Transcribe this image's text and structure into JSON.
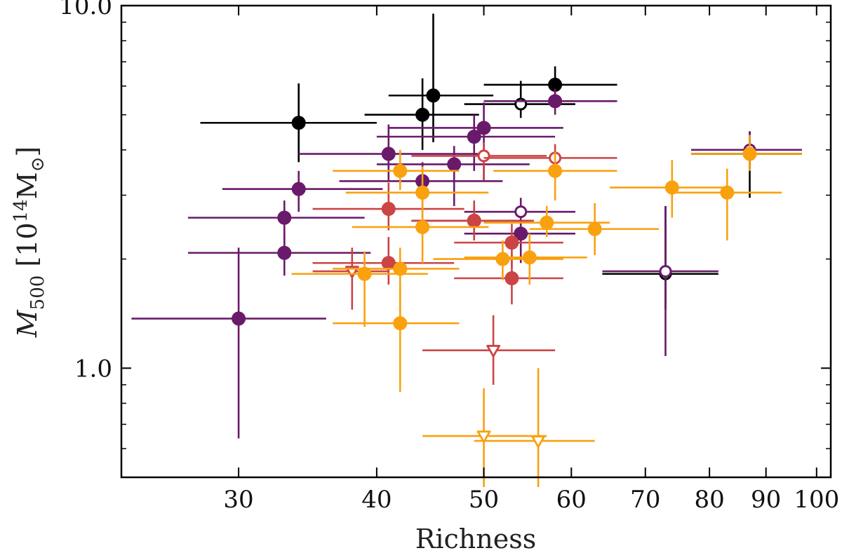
{
  "chart_data": {
    "type": "scatter",
    "title": "",
    "xlabel": "Richness",
    "ylabel_parts": {
      "symbol": "M",
      "subscript": "500",
      "unit_open": " [10",
      "unit_exp": "14",
      "unit_mass": "M",
      "unit_sub": "⊙",
      "unit_close": "]"
    },
    "xscale": "log",
    "yscale": "log",
    "xlim": [
      23.5,
      103
    ],
    "ylim": [
      0.5,
      10.0
    ],
    "x_tick_labels": [
      "30",
      "40",
      "50",
      "60",
      "70",
      "80",
      "90",
      "100"
    ],
    "x_ticks": [
      30,
      40,
      50,
      60,
      70,
      80,
      90,
      100
    ],
    "y_tick_labels": [
      "1.0",
      "10.0"
    ],
    "y_ticks": [
      1.0,
      10.0
    ],
    "grid": false,
    "series_colors": {
      "black": "#000000",
      "purple": "#6a1a6b",
      "red": "#cc4444",
      "orange": "#f9a10f"
    },
    "points": [
      {
        "series": "black",
        "x": 34,
        "y": 4.75,
        "xlo": 27.7,
        "xhi": 40,
        "ylo": 3.7,
        "yhi": 6.1,
        "marker": "filled"
      },
      {
        "series": "black",
        "x": 44,
        "y": 5.0,
        "xlo": 39,
        "xhi": 49.5,
        "ylo": 4.0,
        "yhi": 6.3,
        "marker": "filled"
      },
      {
        "series": "black",
        "x": 45,
        "y": 5.65,
        "xlo": 41,
        "xhi": 51,
        "ylo": 4.2,
        "yhi": 9.5,
        "marker": "filled"
      },
      {
        "series": "black",
        "x": 58,
        "y": 6.05,
        "xlo": 50,
        "xhi": 66,
        "ylo": 5.3,
        "yhi": 6.8,
        "marker": "filled"
      },
      {
        "series": "black",
        "x": 54,
        "y": 5.35,
        "xlo": 48,
        "xhi": 60.5,
        "ylo": 4.9,
        "yhi": 6.2,
        "marker": "open"
      },
      {
        "series": "black",
        "x": 73,
        "y": 1.82,
        "xlo": 64,
        "xhi": 81.5,
        "ylo": 1.45,
        "yhi": 2.8,
        "marker": "open"
      },
      {
        "series": "black",
        "x": 87,
        "y": 3.9,
        "xlo": 77,
        "xhi": 97,
        "ylo": 2.95,
        "yhi": 4.5,
        "marker": "open"
      },
      {
        "series": "purple",
        "x": 30,
        "y": 1.37,
        "xlo": 24,
        "xhi": 36,
        "ylo": 0.64,
        "yhi": 2.15,
        "marker": "filled"
      },
      {
        "series": "purple",
        "x": 33,
        "y": 2.6,
        "xlo": 27,
        "xhi": 39,
        "ylo": 2.2,
        "yhi": 2.9,
        "marker": "filled"
      },
      {
        "series": "purple",
        "x": 33,
        "y": 2.08,
        "xlo": 27,
        "xhi": 39.5,
        "ylo": 1.8,
        "yhi": 2.35,
        "marker": "filled"
      },
      {
        "series": "purple",
        "x": 34,
        "y": 3.12,
        "xlo": 29,
        "xhi": 40.5,
        "ylo": 2.7,
        "yhi": 3.5,
        "marker": "filled"
      },
      {
        "series": "purple",
        "x": 41,
        "y": 3.9,
        "xlo": 34,
        "xhi": 50,
        "ylo": 3.3,
        "yhi": 4.7,
        "marker": "filled"
      },
      {
        "series": "purple",
        "x": 44,
        "y": 3.28,
        "xlo": 37,
        "xhi": 52,
        "ylo": 2.9,
        "yhi": 3.7,
        "marker": "filled"
      },
      {
        "series": "purple",
        "x": 47,
        "y": 3.65,
        "xlo": 40,
        "xhi": 55,
        "ylo": 2.8,
        "yhi": 4.1,
        "marker": "filled"
      },
      {
        "series": "purple",
        "x": 49,
        "y": 4.35,
        "xlo": 40,
        "xhi": 58,
        "ylo": 3.5,
        "yhi": 5.0,
        "marker": "filled"
      },
      {
        "series": "purple",
        "x": 50,
        "y": 4.6,
        "xlo": 41,
        "xhi": 59,
        "ylo": 3.3,
        "yhi": 5.4,
        "marker": "filled"
      },
      {
        "series": "purple",
        "x": 49,
        "y": 2.55,
        "xlo": 43,
        "xhi": 55,
        "ylo": 2.3,
        "yhi": 2.8,
        "marker": "filled"
      },
      {
        "series": "purple",
        "x": 54,
        "y": 2.35,
        "xlo": 48,
        "xhi": 60.5,
        "ylo": 1.95,
        "yhi": 2.6,
        "marker": "filled"
      },
      {
        "series": "purple",
        "x": 58,
        "y": 5.45,
        "xlo": 50,
        "xhi": 66,
        "ylo": 5.0,
        "yhi": 5.9,
        "marker": "filled"
      },
      {
        "series": "purple",
        "x": 54,
        "y": 2.7,
        "xlo": 48,
        "xhi": 60.5,
        "ylo": 2.4,
        "yhi": 2.95,
        "marker": "open"
      },
      {
        "series": "purple",
        "x": 73,
        "y": 1.85,
        "xlo": 64,
        "xhi": 81.5,
        "ylo": 1.08,
        "yhi": 2.8,
        "marker": "open"
      },
      {
        "series": "purple",
        "x": 87,
        "y": 4.0,
        "xlo": 77,
        "xhi": 97,
        "ylo": 3.6,
        "yhi": 4.5,
        "marker": "open"
      },
      {
        "series": "red",
        "x": 38,
        "y": 1.85,
        "xlo": 35,
        "xhi": 41,
        "ylo": 1.45,
        "yhi": 2.15,
        "marker": "triangle"
      },
      {
        "series": "red",
        "x": 41,
        "y": 2.75,
        "xlo": 35,
        "xhi": 48,
        "ylo": 2.4,
        "yhi": 3.25,
        "marker": "filled"
      },
      {
        "series": "red",
        "x": 41,
        "y": 1.95,
        "xlo": 35,
        "xhi": 47,
        "ylo": 1.7,
        "yhi": 2.3,
        "marker": "filled"
      },
      {
        "series": "red",
        "x": 50,
        "y": 3.85,
        "xlo": 43,
        "xhi": 57,
        "ylo": 3.3,
        "yhi": 4.2,
        "marker": "open"
      },
      {
        "series": "red",
        "x": 49,
        "y": 2.55,
        "xlo": 43,
        "xhi": 55.5,
        "ylo": 2.25,
        "yhi": 2.9,
        "marker": "filled"
      },
      {
        "series": "red",
        "x": 53,
        "y": 2.22,
        "xlo": 47,
        "xhi": 59,
        "ylo": 1.9,
        "yhi": 2.5,
        "marker": "filled"
      },
      {
        "series": "red",
        "x": 53,
        "y": 1.77,
        "xlo": 47,
        "xhi": 59,
        "ylo": 1.5,
        "yhi": 2.05,
        "marker": "filled"
      },
      {
        "series": "red",
        "x": 58,
        "y": 3.8,
        "xlo": 50,
        "xhi": 66,
        "ylo": 3.45,
        "yhi": 4.15,
        "marker": "open"
      },
      {
        "series": "red",
        "x": 51,
        "y": 1.12,
        "xlo": 44,
        "xhi": 58,
        "ylo": 0.9,
        "yhi": 1.4,
        "marker": "triangle"
      },
      {
        "series": "orange",
        "x": 39,
        "y": 1.82,
        "xlo": 33.5,
        "xhi": 44.5,
        "ylo": 1.3,
        "yhi": 2.1,
        "marker": "filled"
      },
      {
        "series": "orange",
        "x": 42,
        "y": 1.88,
        "xlo": 36.5,
        "xhi": 47.5,
        "ylo": 1.3,
        "yhi": 2.15,
        "marker": "filled"
      },
      {
        "series": "orange",
        "x": 42,
        "y": 3.5,
        "xlo": 36.5,
        "xhi": 47.5,
        "ylo": 3.1,
        "yhi": 4.0,
        "marker": "filled"
      },
      {
        "series": "orange",
        "x": 42,
        "y": 1.33,
        "xlo": 36.5,
        "xhi": 47.5,
        "ylo": 0.86,
        "yhi": 1.7,
        "marker": "filled"
      },
      {
        "series": "orange",
        "x": 44,
        "y": 3.05,
        "xlo": 37.5,
        "xhi": 50.5,
        "ylo": 2.6,
        "yhi": 3.6,
        "marker": "filled"
      },
      {
        "series": "orange",
        "x": 44,
        "y": 2.45,
        "xlo": 38,
        "xhi": 50.5,
        "ylo": 1.95,
        "yhi": 2.95,
        "marker": "filled"
      },
      {
        "series": "orange",
        "x": 52,
        "y": 2.0,
        "xlo": 45,
        "xhi": 59,
        "ylo": 1.75,
        "yhi": 2.25,
        "marker": "filled"
      },
      {
        "series": "orange",
        "x": 55,
        "y": 2.02,
        "xlo": 48,
        "xhi": 62,
        "ylo": 1.7,
        "yhi": 2.35,
        "marker": "filled"
      },
      {
        "series": "orange",
        "x": 57,
        "y": 2.52,
        "xlo": 50,
        "xhi": 65,
        "ylo": 2.3,
        "yhi": 2.8,
        "marker": "filled"
      },
      {
        "series": "orange",
        "x": 58,
        "y": 3.5,
        "xlo": 51,
        "xhi": 66,
        "ylo": 2.9,
        "yhi": 3.95,
        "marker": "filled"
      },
      {
        "series": "orange",
        "x": 63,
        "y": 2.42,
        "xlo": 55,
        "xhi": 72,
        "ylo": 2.05,
        "yhi": 2.85,
        "marker": "filled"
      },
      {
        "series": "orange",
        "x": 74,
        "y": 3.15,
        "xlo": 65,
        "xhi": 83,
        "ylo": 2.6,
        "yhi": 3.75,
        "marker": "filled"
      },
      {
        "series": "orange",
        "x": 83,
        "y": 3.05,
        "xlo": 74,
        "xhi": 93,
        "ylo": 2.25,
        "yhi": 3.55,
        "marker": "filled"
      },
      {
        "series": "orange",
        "x": 87,
        "y": 3.9,
        "xlo": 77,
        "xhi": 97,
        "ylo": 3.5,
        "yhi": 4.4,
        "marker": "filled"
      },
      {
        "series": "orange",
        "x": 50,
        "y": 0.65,
        "xlo": 44,
        "xhi": 57,
        "ylo": 0.47,
        "yhi": 0.88,
        "marker": "triangle"
      },
      {
        "series": "orange",
        "x": 56,
        "y": 0.63,
        "xlo": 49,
        "xhi": 63,
        "ylo": 0.47,
        "yhi": 1.0,
        "marker": "triangle"
      }
    ]
  }
}
